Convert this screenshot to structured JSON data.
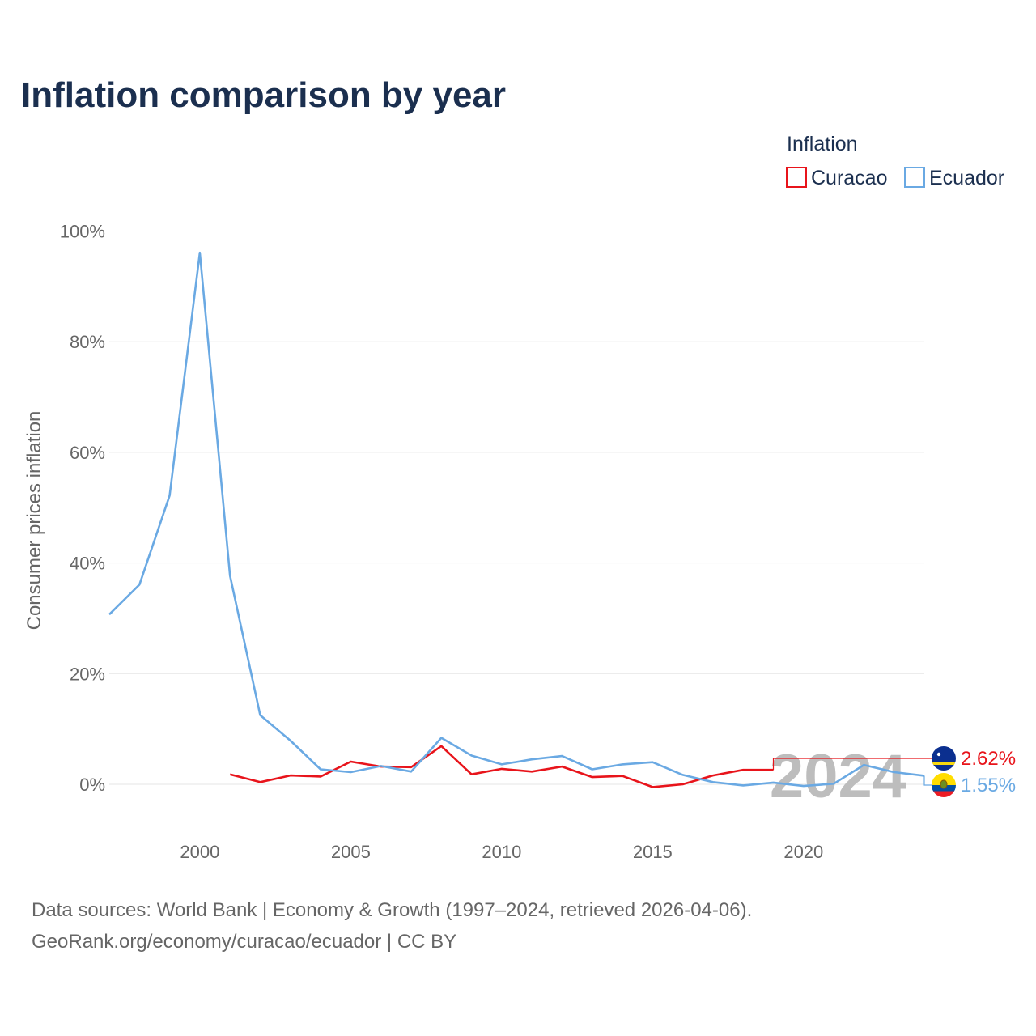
{
  "chart_data": {
    "type": "line",
    "title": "Inflation comparison by year",
    "ylabel": "Consumer prices inflation",
    "xlabel": "",
    "legend_title": "Inflation",
    "legend_position": "top-right",
    "xlim": [
      1997,
      2024
    ],
    "ylim": [
      -10,
      100
    ],
    "x_ticks": [
      2000,
      2005,
      2010,
      2015,
      2020
    ],
    "x_tick_labels": [
      "2000",
      "2005",
      "2010",
      "2015",
      "2020"
    ],
    "y_ticks": [
      0,
      20,
      40,
      60,
      80,
      100
    ],
    "y_tick_labels": [
      "0%",
      "20%",
      "40%",
      "60%",
      "80%",
      "100%"
    ],
    "grid": true,
    "current_year": "2024",
    "x": [
      1997,
      1998,
      1999,
      2000,
      2001,
      2002,
      2003,
      2004,
      2005,
      2006,
      2007,
      2008,
      2009,
      2010,
      2011,
      2012,
      2013,
      2014,
      2015,
      2016,
      2017,
      2018,
      2019,
      2020,
      2021,
      2022,
      2023,
      2024
    ],
    "series": [
      {
        "name": "Curacao",
        "color": "#e8141b",
        "end_label": "2.62%",
        "flag": "curacao-flag-icon",
        "values": [
          null,
          null,
          null,
          null,
          1.8,
          0.4,
          1.6,
          1.4,
          4.1,
          3.2,
          3.1,
          6.9,
          1.8,
          2.8,
          2.3,
          3.2,
          1.3,
          1.5,
          -0.5,
          0.0,
          1.6,
          2.6,
          2.6,
          null,
          null,
          null,
          null,
          null
        ]
      },
      {
        "name": "Ecuador",
        "color": "#6aa9e3",
        "end_label": "1.55%",
        "flag": "ecuador-flag-icon",
        "values": [
          30.7,
          36.1,
          52.2,
          96.1,
          37.7,
          12.5,
          7.9,
          2.7,
          2.2,
          3.3,
          2.3,
          8.4,
          5.2,
          3.6,
          4.5,
          5.1,
          2.7,
          3.6,
          4.0,
          1.7,
          0.4,
          -0.2,
          0.3,
          -0.3,
          0.1,
          3.5,
          2.2,
          1.55
        ]
      }
    ]
  },
  "source": {
    "line1": "Data sources: World Bank | Economy & Growth (1997–2024, retrieved 2026-04-06).",
    "line2": "GeoRank.org/economy/curacao/ecuador | CC BY"
  }
}
